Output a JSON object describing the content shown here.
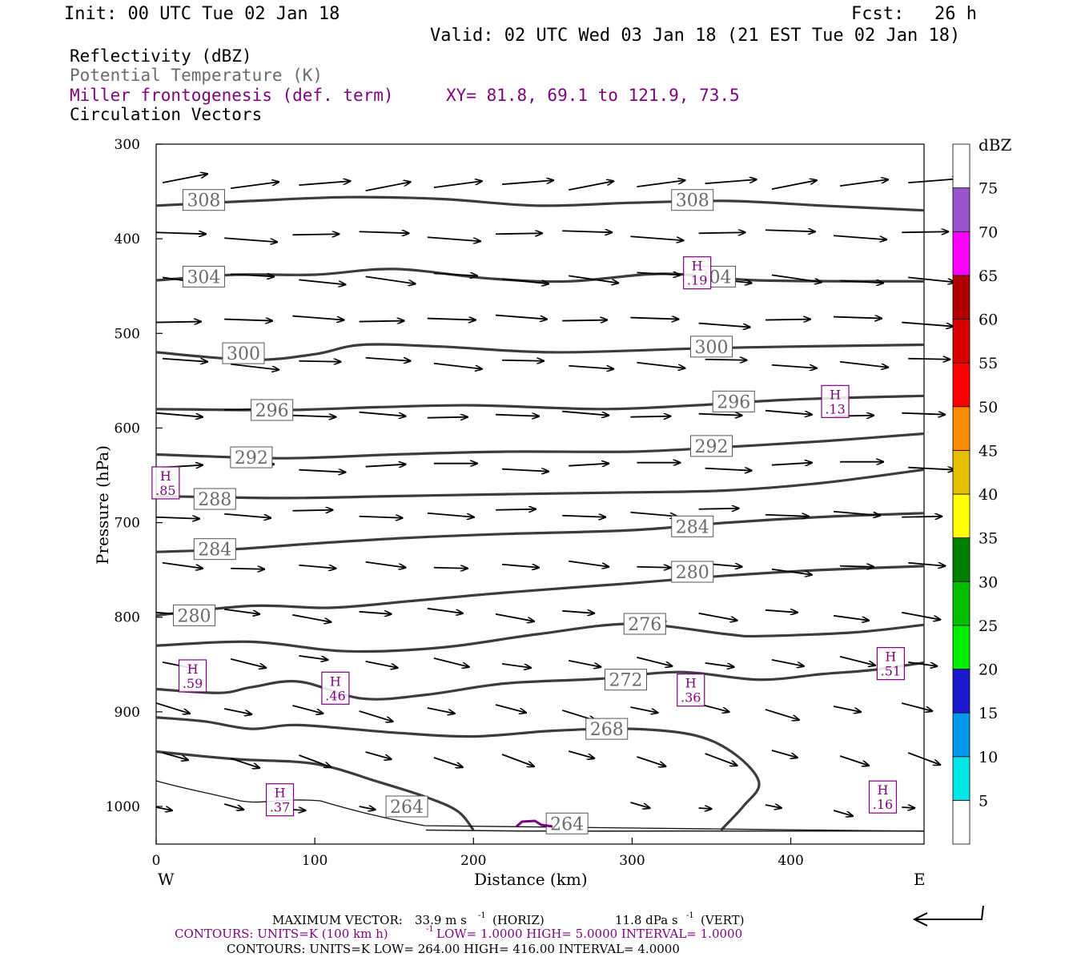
{
  "header": {
    "init": "Init: 00 UTC Tue 02 Jan 18",
    "fcst_label": "Fcst:",
    "fcst_value": "26 h",
    "valid": "Valid: 02 UTC Wed 03 Jan 18 (21 EST Tue 02 Jan 18)"
  },
  "fields": {
    "reflectivity": "Reflectivity (dBZ)",
    "theta": "Potential Temperature (K)",
    "frontogenesis": "Miller frontogenesis (def. term)",
    "xy": "XY=  81.8, 69.1 to 121.9, 73.5",
    "circulation": "Circulation Vectors"
  },
  "colors": {
    "black": "#000000",
    "contour_gray": "#3c3c3c",
    "label_gray": "#6a6a6a",
    "purple": "#7d007d"
  },
  "footer": {
    "max_vector_label": "MAXIMUM VECTOR:",
    "max_vector_h": "33.9 m s",
    "max_vector_h_unit": "(HORIZ)",
    "max_vector_v": "11.8 dPa s",
    "max_vector_v_unit": "(VERT)",
    "contours_purple_a": "CONTOURS:  UNITS=K (100 km h)",
    "contours_purple_b": "  LOW=  1.0000      HIGH=  5.0000      INTERVAL=  1.0000",
    "contours_black": "CONTOURS:  UNITS=K  LOW=  264.00       HIGH=  416.00       INTERVAL=  4.0000",
    "exponent": "-1"
  },
  "chart_data": {
    "type": "cross-section",
    "xlabel": "Distance (km)",
    "ylabel": "Pressure (hPa)",
    "xlim": [
      0,
      484
    ],
    "ylim": [
      1050,
      300
    ],
    "x_ticks": [
      0,
      100,
      200,
      300,
      400
    ],
    "y_ticks": [
      300,
      400,
      500,
      600,
      700,
      800,
      900,
      1000
    ],
    "endpoint_left": "W",
    "endpoint_right": "E",
    "colorbar": {
      "unit": "dBZ",
      "labels": [
        "5",
        "10",
        "15",
        "20",
        "25",
        "30",
        "35",
        "40",
        "45",
        "50",
        "55",
        "60",
        "65",
        "70",
        "75"
      ],
      "colors": [
        "#ffffff",
        "#00e5e5",
        "#0099ee",
        "#1a1acc",
        "#00ee00",
        "#00c000",
        "#008000",
        "#ffff00",
        "#e6c000",
        "#ff8c00",
        "#ff0000",
        "#d80000",
        "#b00000",
        "#ff00ff",
        "#9955cc",
        "#ffffff"
      ]
    },
    "theta_contours": [
      {
        "value": 308,
        "labels": [
          [
            30,
            359
          ],
          [
            338,
            359
          ]
        ],
        "points": [
          [
            0,
            365
          ],
          [
            60,
            360
          ],
          [
            120,
            356
          ],
          [
            180,
            358
          ],
          [
            240,
            365
          ],
          [
            300,
            362
          ],
          [
            360,
            360
          ],
          [
            420,
            365
          ],
          [
            484,
            370
          ]
        ]
      },
      {
        "value": 304,
        "labels": [
          [
            30,
            440
          ],
          [
            352,
            440
          ]
        ],
        "points": [
          [
            0,
            444
          ],
          [
            50,
            438
          ],
          [
            100,
            438
          ],
          [
            150,
            432
          ],
          [
            210,
            442
          ],
          [
            260,
            445
          ],
          [
            320,
            437
          ],
          [
            380,
            444
          ],
          [
            484,
            445
          ]
        ]
      },
      {
        "value": 300,
        "labels": [
          [
            55,
            521
          ],
          [
            350,
            514
          ]
        ],
        "points": [
          [
            0,
            520
          ],
          [
            60,
            528
          ],
          [
            100,
            522
          ],
          [
            130,
            512
          ],
          [
            180,
            514
          ],
          [
            250,
            520
          ],
          [
            340,
            516
          ],
          [
            400,
            514
          ],
          [
            484,
            512
          ]
        ]
      },
      {
        "value": 296,
        "labels": [
          [
            73,
            581
          ],
          [
            364,
            572
          ]
        ],
        "points": [
          [
            0,
            580
          ],
          [
            80,
            581
          ],
          [
            140,
            578
          ],
          [
            200,
            576
          ],
          [
            280,
            580
          ],
          [
            340,
            576
          ],
          [
            400,
            570
          ],
          [
            484,
            566
          ]
        ]
      },
      {
        "value": 292,
        "labels": [
          [
            60,
            631
          ],
          [
            350,
            619
          ]
        ],
        "points": [
          [
            0,
            628
          ],
          [
            80,
            632
          ],
          [
            150,
            628
          ],
          [
            220,
            625
          ],
          [
            300,
            625
          ],
          [
            360,
            620
          ],
          [
            420,
            614
          ],
          [
            484,
            606
          ]
        ]
      },
      {
        "value": 288,
        "labels": [
          [
            37,
            675
          ],
          [
            0,
            0
          ]
        ],
        "points": [
          [
            0,
            672
          ],
          [
            80,
            674
          ],
          [
            150,
            672
          ],
          [
            220,
            670
          ],
          [
            300,
            668
          ],
          [
            360,
            666
          ],
          [
            420,
            658
          ],
          [
            484,
            644
          ]
        ]
      },
      {
        "value": 284,
        "labels": [
          [
            37,
            728
          ],
          [
            338,
            704
          ]
        ],
        "points": [
          [
            0,
            731
          ],
          [
            50,
            728
          ],
          [
            100,
            722
          ],
          [
            160,
            716
          ],
          [
            220,
            712
          ],
          [
            300,
            708
          ],
          [
            360,
            700
          ],
          [
            420,
            694
          ],
          [
            484,
            690
          ]
        ]
      },
      {
        "value": 280,
        "labels": [
          [
            24,
            798
          ],
          [
            338,
            752
          ]
        ],
        "points": [
          [
            0,
            798
          ],
          [
            60,
            788
          ],
          [
            110,
            790
          ],
          [
            160,
            783
          ],
          [
            220,
            774
          ],
          [
            300,
            764
          ],
          [
            360,
            756
          ],
          [
            420,
            750
          ],
          [
            484,
            746
          ]
        ]
      },
      {
        "value": 276,
        "labels": [
          [
            308,
            807
          ],
          [
            0,
            0
          ]
        ],
        "points": [
          [
            0,
            830
          ],
          [
            60,
            826
          ],
          [
            120,
            836
          ],
          [
            180,
            832
          ],
          [
            240,
            818
          ],
          [
            300,
            807
          ],
          [
            360,
            818
          ],
          [
            380,
            820
          ],
          [
            440,
            816
          ],
          [
            484,
            808
          ]
        ]
      },
      {
        "value": 272,
        "labels": [
          [
            296,
            866
          ],
          [
            0,
            0
          ]
        ],
        "points": [
          [
            0,
            876
          ],
          [
            40,
            880
          ],
          [
            60,
            874
          ],
          [
            90,
            868
          ],
          [
            130,
            886
          ],
          [
            170,
            882
          ],
          [
            220,
            870
          ],
          [
            280,
            865
          ],
          [
            330,
            858
          ],
          [
            380,
            866
          ],
          [
            420,
            860
          ],
          [
            450,
            856
          ],
          [
            484,
            848
          ]
        ]
      },
      {
        "value": 268,
        "labels": [
          [
            284,
            918
          ],
          [
            0,
            0
          ]
        ],
        "points": [
          [
            0,
            906
          ],
          [
            30,
            910
          ],
          [
            60,
            918
          ],
          [
            90,
            914
          ],
          [
            150,
            922
          ],
          [
            200,
            926
          ],
          [
            250,
            920
          ],
          [
            300,
            918
          ],
          [
            340,
            925
          ],
          [
            365,
            945
          ],
          [
            380,
            975
          ],
          [
            370,
            1000
          ],
          [
            356,
            1025
          ]
        ]
      },
      {
        "value": 264,
        "labels": [
          [
            158,
            1000
          ],
          [
            259,
            1018
          ]
        ],
        "points": [
          [
            0,
            942
          ],
          [
            50,
            950
          ],
          [
            100,
            955
          ],
          [
            140,
            974
          ],
          [
            170,
            990
          ],
          [
            190,
            1005
          ],
          [
            200,
            1025
          ]
        ]
      },
      {
        "value": 264,
        "labels": [],
        "points": [
          [
            170,
            1025
          ],
          [
            230,
            1026
          ],
          [
            330,
            1026
          ],
          [
            400,
            1026
          ],
          [
            484,
            1026
          ]
        ]
      }
    ],
    "frontogenesis_maxima": [
      {
        "x": 6,
        "p": 658,
        "label": "H",
        "value": ".85"
      },
      {
        "x": 23,
        "p": 862,
        "label": "H",
        "value": ".59"
      },
      {
        "x": 113,
        "p": 875,
        "label": "H",
        "value": ".46"
      },
      {
        "x": 78,
        "p": 993,
        "label": "H",
        "value": ".37"
      },
      {
        "x": 341,
        "p": 436,
        "label": "H",
        "value": ".19"
      },
      {
        "x": 428,
        "p": 572,
        "label": "H",
        "value": ".13"
      },
      {
        "x": 337,
        "p": 877,
        "label": "H",
        "value": ".36"
      },
      {
        "x": 463,
        "p": 849,
        "label": "H",
        "value": ".51"
      },
      {
        "x": 458,
        "p": 990,
        "label": "H",
        "value": ".16"
      }
    ]
  }
}
